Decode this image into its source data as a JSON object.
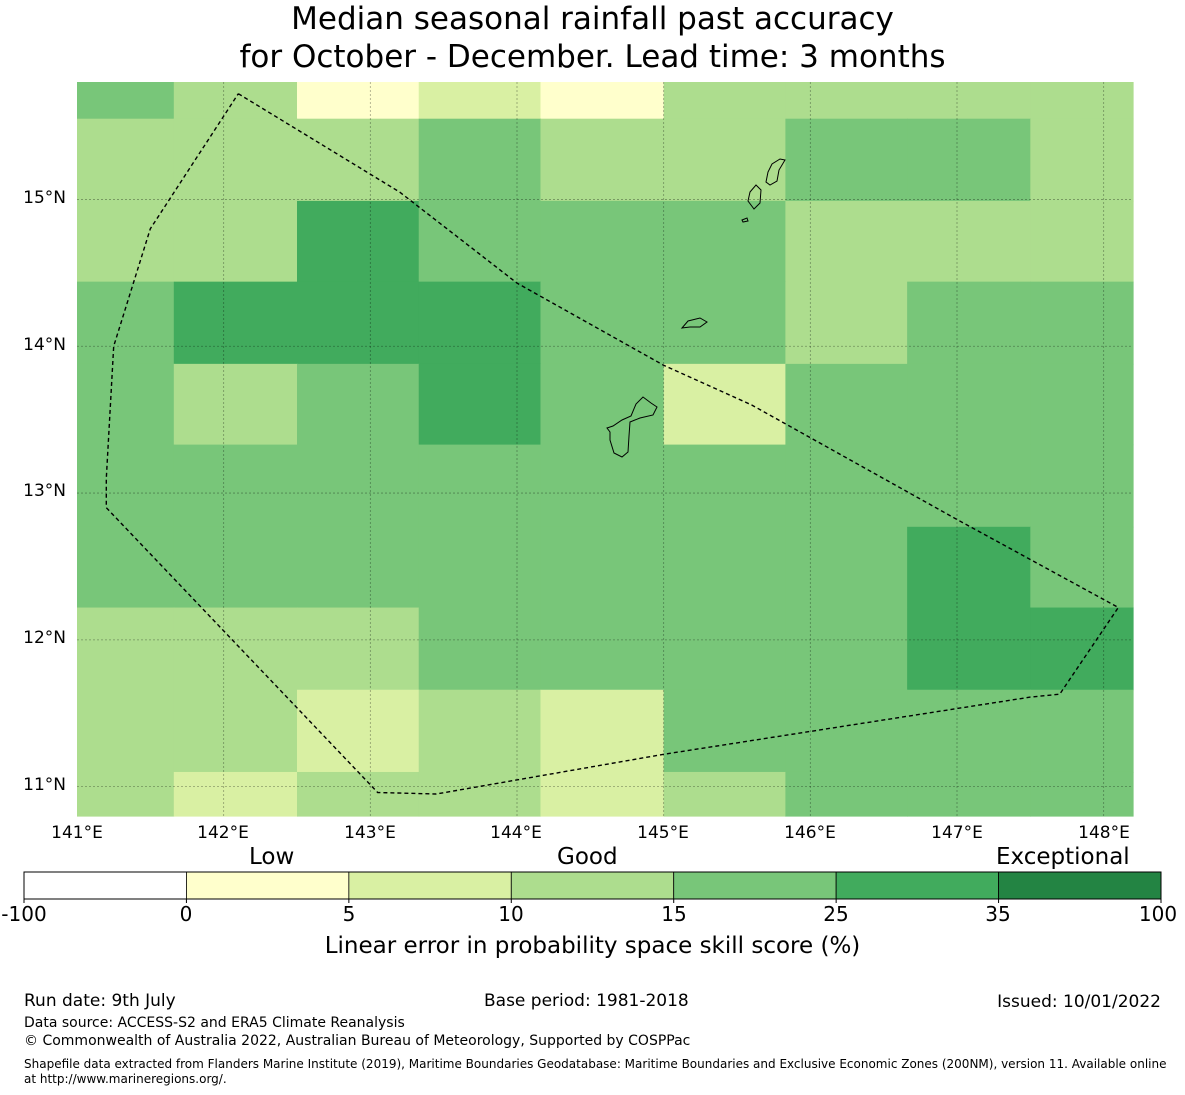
{
  "title": {
    "line1": "Median seasonal rainfall past accuracy",
    "line2": "for October - December. Lead time: 3 months"
  },
  "map": {
    "lon_range": [
      141.0,
      148.2
    ],
    "lat_range": [
      10.8,
      15.8
    ],
    "x_ticks": [
      "141°E",
      "142°E",
      "143°E",
      "144°E",
      "145°E",
      "146°E",
      "147°E",
      "148°E"
    ],
    "y_ticks": [
      "15°N",
      "14°N",
      "13°N",
      "12°N",
      "11°N"
    ],
    "cell_colors": [
      "#ffffff",
      "#ffffcc",
      "#d9f0a3",
      "#addd8e",
      "#78c679",
      "#41ab5d",
      "#238443"
    ],
    "column_edges_lon": [
      141.0,
      141.66,
      142.5,
      143.33,
      144.16,
      145.0,
      145.83,
      146.66,
      147.5,
      148.2
    ],
    "row_edges_lat": [
      15.8,
      15.55,
      14.99,
      14.44,
      13.88,
      13.33,
      12.77,
      12.22,
      11.66,
      11.1,
      10.8
    ],
    "skill_class_grid": [
      [
        4,
        3,
        1,
        2,
        1,
        3,
        3,
        3,
        3
      ],
      [
        3,
        3,
        3,
        4,
        3,
        3,
        4,
        4,
        3
      ],
      [
        3,
        3,
        5,
        4,
        4,
        4,
        3,
        3,
        3
      ],
      [
        4,
        5,
        5,
        5,
        4,
        4,
        3,
        4,
        4
      ],
      [
        4,
        3,
        4,
        5,
        4,
        2,
        4,
        4,
        4
      ],
      [
        4,
        4,
        4,
        4,
        4,
        4,
        4,
        4,
        4
      ],
      [
        4,
        4,
        4,
        4,
        4,
        4,
        4,
        5,
        4
      ],
      [
        3,
        3,
        3,
        4,
        4,
        4,
        4,
        5,
        5
      ],
      [
        3,
        3,
        2,
        3,
        2,
        4,
        4,
        4,
        4
      ],
      [
        3,
        2,
        3,
        3,
        2,
        3,
        4,
        4,
        4
      ]
    ],
    "eez_boundary_lonlat": [
      [
        142.1,
        15.72
      ],
      [
        143.2,
        15.05
      ],
      [
        144.0,
        14.43
      ],
      [
        145.0,
        13.87
      ],
      [
        145.6,
        13.6
      ],
      [
        147.0,
        12.82
      ],
      [
        148.1,
        12.22
      ],
      [
        147.7,
        11.63
      ],
      [
        147.5,
        11.61
      ],
      [
        145.0,
        11.22
      ],
      [
        143.45,
        10.95
      ],
      [
        143.05,
        10.96
      ],
      [
        141.2,
        12.9
      ],
      [
        141.2,
        13.1
      ],
      [
        141.25,
        14.0
      ],
      [
        141.5,
        14.8
      ],
      [
        142.1,
        15.72
      ]
    ]
  },
  "scale": {
    "low": "Low",
    "good": "Good",
    "exceptional": "Exceptional"
  },
  "colorbar": {
    "ticks": [
      "-100",
      "0",
      "5",
      "10",
      "15",
      "25",
      "35",
      "100"
    ],
    "colors": [
      "#ffffff",
      "#ffffcc",
      "#d9f0a3",
      "#addd8e",
      "#78c679",
      "#41ab5d",
      "#238443"
    ],
    "label": "Linear error in probability space skill score (%)"
  },
  "footer": {
    "run_date": "Run date: 9th July",
    "base_period": "Base period: 1981-2018",
    "issued": "Issued: 10/01/2022",
    "data_source": "Data source: ACCESS-S2 and ERA5 Climate Reanalysis",
    "copyright": "© Commonwealth of Australia 2022, Australian Bureau of Meteorology, Supported by COSPPac",
    "shapefile": "Shapefile data extracted from Flanders Marine Institute (2019), Maritime Boundaries Geodatabase: Maritime Boundaries and Exclusive Economic Zones (200NM), version 11. Available online at http://www.marineregions.org/."
  }
}
